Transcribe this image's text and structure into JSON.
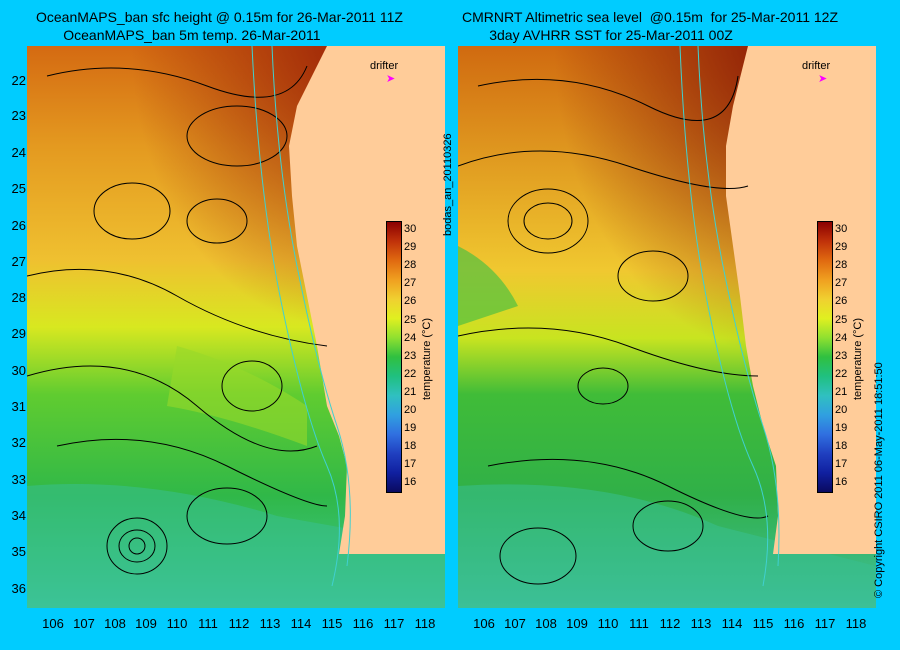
{
  "titles": {
    "left": "OceanMAPS_ban sfc height @ 0.15m for 26-Mar-2011 11Z\n       OceanMAPS_ban 5m temp. 26-Mar-2011",
    "right": "CMRNRT Altimetric sea level  @0.15m  for 25-Mar-2011 12Z\n       3day AVHRR SST for 25-Mar-2011 00Z"
  },
  "axes": {
    "lat_labels": [
      "22",
      "23",
      "24",
      "25",
      "26",
      "27",
      "28",
      "29",
      "30",
      "31",
      "32",
      "33",
      "34",
      "35",
      "36"
    ],
    "lon_labels": [
      "106",
      "107",
      "108",
      "109",
      "110",
      "111",
      "112",
      "113",
      "114",
      "115",
      "116",
      "117",
      "118"
    ]
  },
  "drifter_label": "drifter",
  "colorbar": {
    "title": "temperature (°C)",
    "ticks": [
      "30",
      "29",
      "28",
      "27",
      "26",
      "25",
      "24",
      "23",
      "22",
      "21",
      "20",
      "19",
      "18",
      "17",
      "16"
    ],
    "stops": [
      "#8b0000",
      "#c0320a",
      "#e06a10",
      "#f0a020",
      "#f0d030",
      "#e0f020",
      "#90e030",
      "#30c040",
      "#20c080",
      "#30c0c0",
      "#30a0e0",
      "#3070e0",
      "#2040c0",
      "#1020a0",
      "#0a0a60"
    ]
  },
  "side_labels": {
    "middle": "bodas_an_20110326",
    "right": "© Copyright CSIRO 2011   06-May-2011 18:51:50"
  },
  "colors": {
    "background": "#00ccff",
    "land": "#ffcc99",
    "contour": "#000000",
    "coastline_contour": "#40d0d0",
    "drifter": "#ff00ff"
  }
}
